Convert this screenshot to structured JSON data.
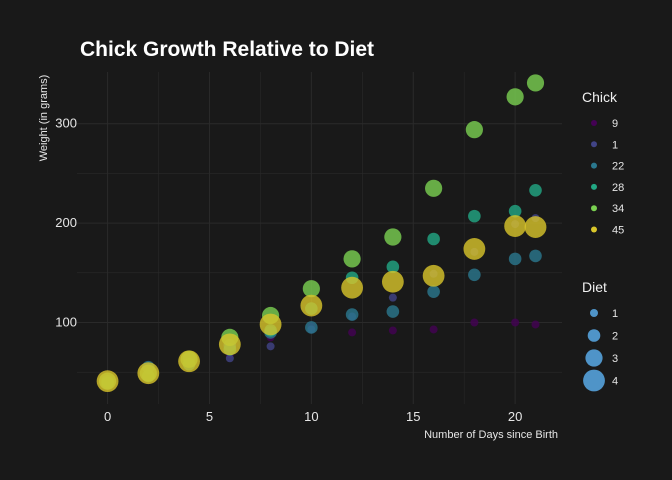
{
  "chart_data": {
    "type": "scatter",
    "title": "Chick Growth Relative to Diet",
    "xlabel": "Number of Days since Birth",
    "ylabel": "Weight (in grams)",
    "xlim": [
      -1.5,
      22.3
    ],
    "ylim": [
      18,
      352
    ],
    "x_ticks": [
      0,
      5,
      10,
      15,
      20
    ],
    "y_ticks": [
      100,
      200,
      300
    ],
    "grid": true,
    "colors": {
      "background": "#191919",
      "grid": "#2a2a2a",
      "text": "#e6e6e6",
      "diet_legend": "#4f94c8"
    },
    "color_legend": {
      "title": "Chick",
      "placement": "right-top",
      "entries": [
        {
          "label": "9",
          "color": "#440154"
        },
        {
          "label": "1",
          "color": "#414487"
        },
        {
          "label": "22",
          "color": "#2a788e"
        },
        {
          "label": "28",
          "color": "#22a884"
        },
        {
          "label": "34",
          "color": "#7ad151"
        },
        {
          "label": "45",
          "color": "#d9c62a"
        }
      ]
    },
    "size_legend": {
      "title": "Diet",
      "placement": "right-bottom",
      "entries": [
        {
          "label": "1",
          "diet": 1
        },
        {
          "label": "2",
          "diet": 2
        },
        {
          "label": "3",
          "diet": 3
        },
        {
          "label": "4",
          "diet": 4
        }
      ]
    },
    "series": [
      {
        "name": "9",
        "diet": 1,
        "color": "#440154",
        "x": [
          0,
          2,
          4,
          6,
          8,
          10,
          12,
          14,
          16,
          18,
          20,
          21
        ],
        "y": [
          42,
          51,
          59,
          68,
          85,
          96,
          90,
          92,
          93,
          100,
          100,
          98
        ]
      },
      {
        "name": "1",
        "diet": 1,
        "color": "#414487",
        "x": [
          0,
          2,
          4,
          6,
          8,
          10,
          12,
          14,
          16,
          18,
          20,
          21
        ],
        "y": [
          42,
          51,
          59,
          64,
          76,
          93,
          106,
          125,
          149,
          171,
          199,
          205
        ]
      },
      {
        "name": "22",
        "diet": 2,
        "color": "#2a788e",
        "x": [
          0,
          2,
          4,
          6,
          8,
          10,
          12,
          14,
          16,
          18,
          20,
          21
        ],
        "y": [
          41,
          55,
          64,
          77,
          90,
          95,
          108,
          111,
          131,
          148,
          164,
          167
        ]
      },
      {
        "name": "28",
        "diet": 2,
        "color": "#22a884",
        "x": [
          0,
          2,
          4,
          6,
          8,
          10,
          12,
          14,
          16,
          18,
          20,
          21
        ],
        "y": [
          39,
          46,
          58,
          73,
          92,
          114,
          145,
          156,
          184,
          207,
          212,
          233
        ]
      },
      {
        "name": "34",
        "diet": 3,
        "color": "#7ad151",
        "x": [
          0,
          2,
          4,
          6,
          8,
          10,
          12,
          14,
          16,
          18,
          20,
          21
        ],
        "y": [
          41,
          49,
          63,
          85,
          107,
          134,
          164,
          186,
          235,
          294,
          327,
          341
        ]
      },
      {
        "name": "45",
        "diet": 4,
        "color": "#d9c62a",
        "x": [
          0,
          2,
          4,
          6,
          8,
          10,
          12,
          14,
          16,
          18,
          20,
          21
        ],
        "y": [
          41,
          49,
          61,
          78,
          98,
          117,
          135,
          141,
          147,
          174,
          197,
          196
        ]
      }
    ]
  }
}
